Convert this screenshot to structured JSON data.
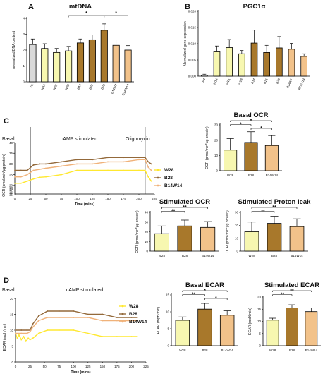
{
  "panel_labels": {
    "a": "A",
    "b": "B",
    "c": "C",
    "d": "D"
  },
  "colors": {
    "P4": "#d9d9d9",
    "W": "#f7f7b0",
    "B": "#a8782b",
    "B14W": "#f2c28a",
    "W28_line": "#ffe830",
    "B28_line": "#93693a",
    "B14W14_line": "#f0b27a",
    "vline": "#222222"
  },
  "chart_data": [
    {
      "id": "mtdna",
      "type": "bar",
      "title": "mtDNA",
      "ylabel": "normalized DNA content",
      "ylim": [
        0,
        4
      ],
      "yticks": [
        0,
        1,
        2,
        3,
        4
      ],
      "categories": [
        "P4",
        "W14",
        "W21",
        "W28",
        "B14",
        "B21",
        "B28",
        "B14W7",
        "B14W14"
      ],
      "values": [
        2.35,
        2.1,
        1.85,
        1.95,
        2.45,
        2.65,
        3.25,
        2.3,
        2.0
      ],
      "errors": [
        0.35,
        0.3,
        0.25,
        0.28,
        0.25,
        0.3,
        0.4,
        0.35,
        0.28
      ],
      "color_keys": [
        "P4",
        "W",
        "W",
        "W",
        "B",
        "B",
        "B",
        "B14W",
        "B14W"
      ],
      "significance": [
        {
          "from": "W28",
          "to": "B28",
          "label": "*"
        },
        {
          "from": "B28",
          "to": "B14W14",
          "label": "*"
        }
      ]
    },
    {
      "id": "pgc1a",
      "type": "bar",
      "title": "PGC1α",
      "ylabel": "Normalized gene expression",
      "ylim": [
        0,
        0.02
      ],
      "yticks": [
        "0.000",
        "0.005",
        "0.010",
        "0.015",
        "0.020"
      ],
      "categories": [
        "P4",
        "W14",
        "W21",
        "W28",
        "B14",
        "B21",
        "B28",
        "B14W7",
        "B14W14"
      ],
      "values": [
        0.0003,
        0.0075,
        0.0088,
        0.0069,
        0.0102,
        0.0073,
        0.0087,
        0.0083,
        0.0061
      ],
      "errors": [
        0.0003,
        0.0018,
        0.0025,
        0.001,
        0.004,
        0.0022,
        0.0035,
        0.0018,
        0.0008
      ],
      "color_keys": [
        "P4",
        "W",
        "W",
        "W",
        "B",
        "B",
        "B",
        "B14W",
        "B14W"
      ]
    },
    {
      "id": "ocr_trace",
      "type": "line",
      "ylabel": "OCR (pmol/min*µg protein)",
      "xlabel": "Time (mins)",
      "xlim": [
        0,
        225
      ],
      "ylim": [
        16,
        40
      ],
      "yticks": [
        20,
        25,
        30,
        35,
        40
      ],
      "extra_yticks": [
        15,
        16,
        17,
        18
      ],
      "xticks": [
        0,
        25,
        50,
        75,
        100,
        125,
        150,
        175,
        200,
        225
      ],
      "vlines": [
        25,
        210
      ],
      "regions": [
        "Basal",
        "cAMP stimulated",
        "Oligomycin"
      ],
      "series": [
        {
          "name": "W28",
          "color_key": "W28_line",
          "x": [
            0,
            10,
            20,
            30,
            40,
            50,
            75,
            100,
            125,
            150,
            175,
            200,
            210,
            215,
            220
          ],
          "y": [
            21,
            21,
            22,
            23,
            23.8,
            24,
            25,
            27,
            27,
            27,
            27,
            27,
            27,
            24,
            22
          ]
        },
        {
          "name": "B28",
          "color_key": "B28_line",
          "x": [
            0,
            10,
            20,
            30,
            40,
            50,
            75,
            100,
            125,
            150,
            175,
            200,
            210,
            215,
            220
          ],
          "y": [
            27,
            27,
            27,
            29.5,
            30,
            30,
            31,
            32,
            32,
            33,
            33,
            33,
            33,
            31,
            30
          ]
        },
        {
          "name": "B14W14",
          "color_key": "B14W14_line",
          "x": [
            0,
            10,
            20,
            30,
            40,
            50,
            75,
            100,
            125,
            150,
            175,
            200,
            210,
            215,
            220
          ],
          "y": [
            24,
            24,
            25,
            27,
            27.5,
            28,
            29,
            30,
            30,
            31,
            31,
            32,
            32,
            28.5,
            27
          ]
        }
      ]
    },
    {
      "id": "basal_ocr",
      "type": "bar",
      "title": "Basal OCR",
      "ylabel": "OCR (pmol/min*µg protein)",
      "ylim": [
        0,
        30
      ],
      "yticks": [
        0,
        10,
        20,
        30
      ],
      "categories": [
        "W28",
        "B28",
        "B14W14"
      ],
      "values": [
        13.5,
        18.5,
        16.5
      ],
      "errors": [
        7.5,
        7.0,
        6.5
      ],
      "color_keys": [
        "W",
        "B",
        "B14W"
      ],
      "significance": [
        {
          "from": "W28",
          "to": "B14W14",
          "label": "*"
        },
        {
          "from": "W28",
          "to": "B28",
          "label": "*"
        },
        {
          "from": "B28",
          "to": "B14W14",
          "label": "*"
        }
      ]
    },
    {
      "id": "stim_ocr",
      "type": "bar",
      "title": "Stimulated OCR",
      "ylabel": "OCR (pmol/min*µg protein)",
      "ylim": [
        0,
        40
      ],
      "yticks": [
        0,
        10,
        20,
        30,
        40
      ],
      "categories": [
        "W28",
        "B28",
        "B14W14"
      ],
      "values": [
        18,
        26,
        24.5
      ],
      "errors": [
        8,
        6,
        6
      ],
      "color_keys": [
        "W",
        "B",
        "B14W"
      ],
      "significance": [
        {
          "from": "W28",
          "to": "B14W14",
          "label": "**"
        },
        {
          "from": "W28",
          "to": "B28",
          "label": "**"
        }
      ]
    },
    {
      "id": "stim_proton",
      "type": "bar",
      "title": "Stimulated Proton leak",
      "ylabel": "OCR (pmol/min*µg protein)",
      "ylim": [
        0,
        30
      ],
      "yticks": [
        0,
        10,
        20,
        30
      ],
      "categories": [
        "W28",
        "B28",
        "B14W14"
      ],
      "values": [
        15,
        21.5,
        19
      ],
      "errors": [
        7.5,
        5.5,
        6
      ],
      "color_keys": [
        "W",
        "B",
        "B14W"
      ],
      "significance": [
        {
          "from": "W28",
          "to": "B14W14",
          "label": "**"
        },
        {
          "from": "W28",
          "to": "B28",
          "label": "**"
        }
      ]
    },
    {
      "id": "ecar_trace",
      "type": "line",
      "ylabel": "ECAR (mpH/min)",
      "xlabel": "Time (mins)",
      "xlim": [
        0,
        225
      ],
      "ylim": [
        0,
        20
      ],
      "yticks": [
        0,
        5,
        10,
        15,
        20
      ],
      "xticks": [
        0,
        25,
        50,
        75,
        100,
        125,
        150,
        175,
        200,
        225
      ],
      "vlines": [
        25
      ],
      "regions": [
        "Basal",
        "cAMP stimulated"
      ],
      "series": [
        {
          "name": "W28",
          "color_key": "W28_line",
          "x": [
            0,
            3,
            6,
            10,
            14,
            18,
            22,
            25,
            30,
            40,
            55,
            75,
            100,
            125,
            150,
            175,
            200,
            210
          ],
          "y": [
            9,
            7.5,
            8.5,
            7,
            8,
            6.5,
            7.5,
            7,
            7.5,
            9,
            10,
            10,
            10,
            9,
            8,
            8,
            8,
            8
          ]
        },
        {
          "name": "B28",
          "color_key": "B28_line",
          "x": [
            0,
            10,
            20,
            25,
            30,
            40,
            55,
            75,
            100,
            125,
            150,
            175,
            200,
            210
          ],
          "y": [
            10,
            10,
            10,
            10,
            12,
            14.5,
            16,
            16,
            16,
            15,
            15,
            14,
            14,
            14
          ]
        },
        {
          "name": "B14W14",
          "color_key": "B14W14_line",
          "x": [
            0,
            10,
            20,
            25,
            30,
            40,
            55,
            75,
            100,
            125,
            150,
            175,
            200,
            210
          ],
          "y": [
            9,
            9,
            9,
            9.5,
            11,
            13,
            14,
            14,
            14,
            14,
            13,
            13,
            13,
            13
          ]
        }
      ]
    },
    {
      "id": "basal_ecar",
      "type": "bar",
      "title": "Basal ECAR",
      "ylabel": "ECAR (mpH/min)",
      "ylim": [
        0,
        15
      ],
      "yticks": [
        0,
        5,
        10,
        15
      ],
      "categories": [
        "W28",
        "B28",
        "B14W14"
      ],
      "values": [
        7.5,
        10.8,
        9
      ],
      "errors": [
        1,
        1.7,
        1.3
      ],
      "color_keys": [
        "W",
        "B",
        "B14W"
      ],
      "significance": [
        {
          "from": "W28",
          "to": "B14W14",
          "label": "*"
        },
        {
          "from": "W28",
          "to": "B28",
          "label": "**"
        },
        {
          "from": "B28",
          "to": "B14W14",
          "label": "*"
        }
      ]
    },
    {
      "id": "stim_ecar",
      "type": "bar",
      "title": "Stimulated ECAR",
      "ylabel": "ECAR (mpH/min)",
      "ylim": [
        0,
        20
      ],
      "yticks": [
        0,
        5,
        10,
        15,
        20
      ],
      "categories": [
        "W28",
        "B28",
        "B14W14"
      ],
      "values": [
        10.5,
        15.5,
        14
      ],
      "errors": [
        0.8,
        1.3,
        1.5
      ],
      "color_keys": [
        "W",
        "B",
        "B14W"
      ],
      "significance": [
        {
          "from": "W28",
          "to": "B14W14",
          "label": "**"
        },
        {
          "from": "W28",
          "to": "B28",
          "label": "**"
        }
      ]
    }
  ]
}
